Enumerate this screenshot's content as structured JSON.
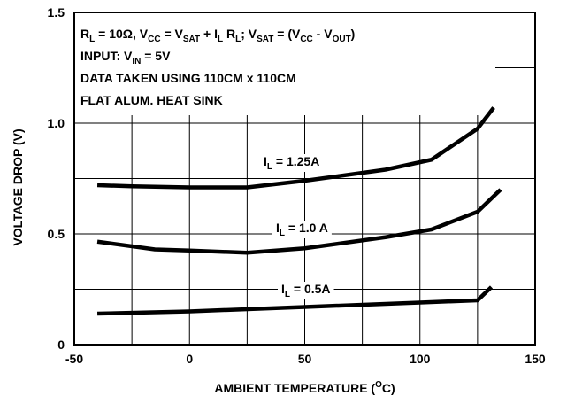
{
  "chart_data": {
    "type": "line",
    "annotation_lines": [
      [
        "R",
        {
          "sub": "L"
        },
        " = 10Ω, V",
        {
          "sub": "CC"
        },
        " = V",
        {
          "sub": "SAT"
        },
        " + I",
        {
          "sub": "L"
        },
        " R",
        {
          "sub": "L"
        },
        "; V",
        {
          "sub": "SAT"
        },
        " = (V",
        {
          "sub": "CC"
        },
        " - V",
        {
          "sub": "OUT"
        },
        ")"
      ],
      [
        "INPUT: V",
        {
          "sub": "IN"
        },
        " = 5V"
      ],
      [
        "DATA TAKEN USING 110CM x 110CM"
      ],
      [
        "FLAT ALUM. HEAT SINK"
      ]
    ],
    "x_label": [
      "AMBIENT TEMPERATURE (",
      {
        "sup": "O"
      },
      "C)"
    ],
    "y_label": "VOLTAGE DROP (V)",
    "xlim": [
      -50,
      150
    ],
    "ylim": [
      0,
      1.5
    ],
    "xticks": [
      -50,
      0,
      50,
      100,
      150
    ],
    "yticks": [
      0,
      0.5,
      {
        "value": 1,
        "label": "1.0"
      },
      1.5
    ],
    "grid": true,
    "x_grid_minor": [
      -25,
      25,
      75,
      125
    ],
    "y_grid_minor": [
      0.25,
      0.75,
      1.25
    ],
    "series": [
      {
        "label": [
          "I",
          {
            "sub": "L"
          },
          " = 1.25A"
        ],
        "color": "#000000",
        "x": [
          -40,
          -25,
          0,
          25,
          50,
          85,
          105,
          125,
          132
        ],
        "values": [
          0.72,
          0.715,
          0.71,
          0.71,
          0.74,
          0.79,
          0.835,
          0.975,
          1.07
        ]
      },
      {
        "label": [
          "I",
          {
            "sub": "L"
          },
          " = 1.0 A"
        ],
        "color": "#000000",
        "x": [
          -40,
          -15,
          0,
          25,
          50,
          85,
          105,
          125,
          135
        ],
        "values": [
          0.465,
          0.43,
          0.425,
          0.415,
          0.435,
          0.485,
          0.52,
          0.6,
          0.7
        ]
      },
      {
        "label": [
          "I",
          {
            "sub": "L"
          },
          " = 0.5A"
        ],
        "color": "#000000",
        "x": [
          -40,
          0,
          50,
          100,
          125,
          131
        ],
        "values": [
          0.14,
          0.15,
          0.17,
          0.19,
          0.2,
          0.26
        ]
      }
    ]
  }
}
